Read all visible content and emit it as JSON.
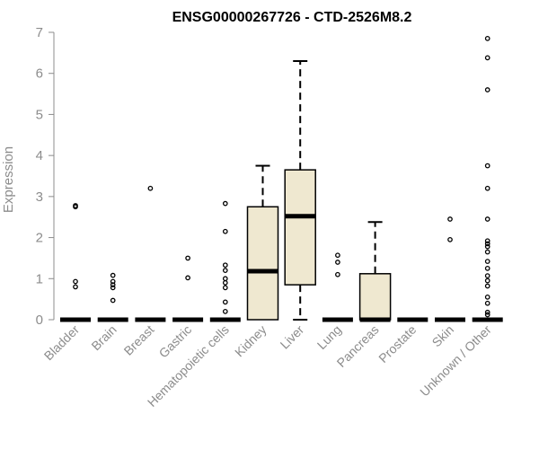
{
  "chart_data": {
    "type": "box",
    "title": "ENSG00000267726 - CTD-2526M8.2",
    "xlabel": "",
    "ylabel": "Expression",
    "ylim": [
      0,
      7
    ],
    "yticks": [
      0,
      1,
      2,
      3,
      4,
      5,
      6,
      7
    ],
    "grid": false,
    "colors": {
      "box_fill": "#efe8d0",
      "stroke": "#000000",
      "axis_text": "#8c8c8c"
    },
    "categories": [
      "Bladder",
      "Brain",
      "Breast",
      "Gastric",
      "Hematopoietic cells",
      "Kidney",
      "Liver",
      "Lung",
      "Pancreas",
      "Prostate",
      "Skin",
      "Unknown / Other"
    ],
    "boxes": [
      {
        "min": 0,
        "q1": 0,
        "median": 0,
        "q3": 0,
        "max": 0,
        "outliers": [
          0.8,
          0.93,
          2.75,
          2.78
        ]
      },
      {
        "min": 0,
        "q1": 0,
        "median": 0,
        "q3": 0,
        "max": 0,
        "outliers": [
          0.47,
          0.78,
          0.85,
          0.93,
          1.08
        ]
      },
      {
        "min": 0,
        "q1": 0,
        "median": 0,
        "q3": 0,
        "max": 0,
        "outliers": [
          3.2
        ]
      },
      {
        "min": 0,
        "q1": 0,
        "median": 0,
        "q3": 0,
        "max": 0,
        "outliers": [
          1.02,
          1.5
        ]
      },
      {
        "min": 0,
        "q1": 0,
        "median": 0,
        "q3": 0,
        "max": 0,
        "outliers": [
          0.2,
          0.43,
          0.78,
          0.9,
          1.0,
          1.2,
          1.33,
          2.15,
          2.83
        ]
      },
      {
        "min": 0,
        "q1": 0,
        "median": 1.18,
        "q3": 2.75,
        "max": 3.75,
        "outliers": []
      },
      {
        "min": 0,
        "q1": 0.85,
        "median": 2.52,
        "q3": 3.65,
        "max": 6.3,
        "outliers": []
      },
      {
        "min": 0,
        "q1": 0,
        "median": 0,
        "q3": 0,
        "max": 0,
        "outliers": [
          1.1,
          1.4,
          1.57
        ]
      },
      {
        "min": 0,
        "q1": 0,
        "median": 0,
        "q3": 1.12,
        "max": 2.38,
        "outliers": []
      },
      {
        "min": 0,
        "q1": 0,
        "median": 0,
        "q3": 0,
        "max": 0,
        "outliers": []
      },
      {
        "min": 0,
        "q1": 0,
        "median": 0,
        "q3": 0,
        "max": 0,
        "outliers": [
          1.95,
          2.45
        ]
      },
      {
        "min": 0,
        "q1": 0,
        "median": 0,
        "q3": 0,
        "max": 0,
        "outliers": [
          0.12,
          0.18,
          0.4,
          0.55,
          0.82,
          0.95,
          1.07,
          1.25,
          1.42,
          1.65,
          1.78,
          1.85,
          1.92,
          2.45,
          3.2,
          3.75,
          5.6,
          6.38,
          6.85
        ]
      }
    ]
  }
}
